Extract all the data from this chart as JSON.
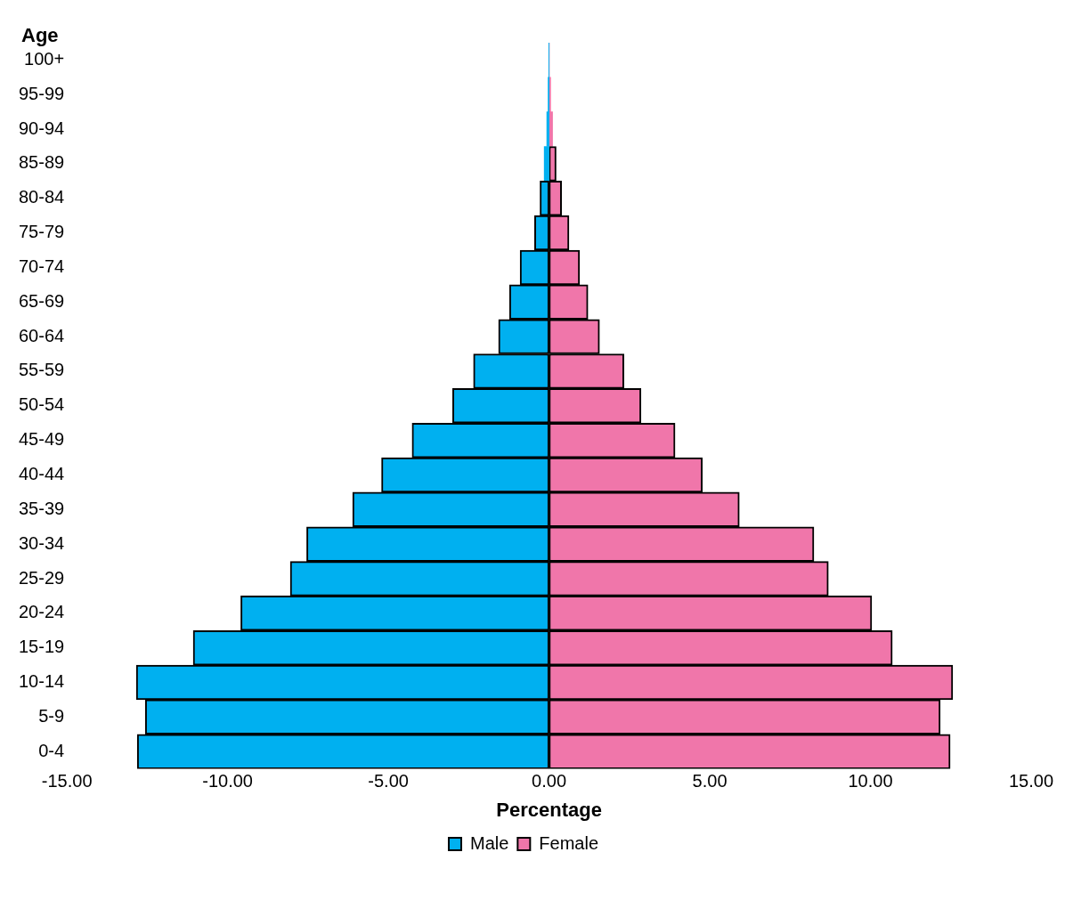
{
  "chart_data": {
    "type": "bar",
    "orientation": "horizontal",
    "stacked": true,
    "ylabel": "Age",
    "xlabel": "Percentage",
    "categories": [
      "100+",
      "95-99",
      "90-94",
      "85-89",
      "80-84",
      "75-79",
      "70-74",
      "65-69",
      "60-64",
      "55-59",
      "50-54",
      "45-49",
      "40-44",
      "35-39",
      "30-34",
      "25-29",
      "20-24",
      "15-19",
      "10-14",
      "5-9",
      "0-4"
    ],
    "series": [
      {
        "name": "Male",
        "color": "#00b0f0",
        "values": [
          -0.01,
          -0.03,
          -0.07,
          -0.15,
          -0.28,
          -0.45,
          -0.9,
          -1.23,
          -1.57,
          -2.35,
          -3.0,
          -4.26,
          -5.21,
          -6.11,
          -7.54,
          -8.05,
          -9.59,
          -11.07,
          -12.84,
          -12.56,
          -12.81
        ]
      },
      {
        "name": "Female",
        "color": "#f076aa",
        "values": [
          0.01,
          0.05,
          0.11,
          0.22,
          0.39,
          0.62,
          0.95,
          1.21,
          1.57,
          2.33,
          2.86,
          3.92,
          4.77,
          5.92,
          8.24,
          8.69,
          10.04,
          10.68,
          12.56,
          12.17,
          12.48
        ]
      }
    ],
    "xlim": [
      -15,
      15
    ],
    "xticks": [
      {
        "value": -15,
        "label": "-15.00"
      },
      {
        "value": -10,
        "label": "-10.00"
      },
      {
        "value": -5,
        "label": "-5.00"
      },
      {
        "value": 0,
        "label": "0.00"
      },
      {
        "value": 5,
        "label": "5.00"
      },
      {
        "value": 10,
        "label": "10.00"
      },
      {
        "value": 15,
        "label": "15.00"
      }
    ],
    "grid": false,
    "legend": "bottom"
  }
}
